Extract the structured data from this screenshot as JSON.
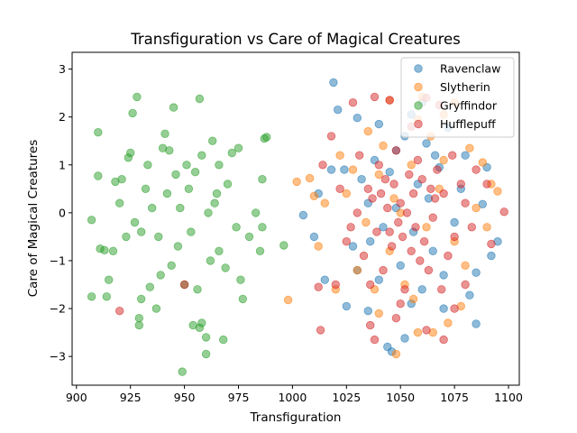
{
  "chart_data": {
    "type": "scatter",
    "title": "Transfiguration vs Care of Magical Creatures",
    "xlabel": "Transfiguration",
    "ylabel": "Care of Magical Creatures",
    "xlim": [
      898,
      1105
    ],
    "ylim": [
      -3.6,
      3.35
    ],
    "xticks": [
      900,
      925,
      950,
      975,
      1000,
      1025,
      1050,
      1075,
      1100
    ],
    "yticks": [
      -3,
      -2,
      -1,
      0,
      1,
      2,
      3
    ],
    "grid": false,
    "legend_position": "top-right",
    "series": [
      {
        "name": "Ravenclaw",
        "color": "#1f77b4",
        "points": [
          [
            1019,
            2.72
          ],
          [
            1021,
            2.15
          ],
          [
            1030,
            1.98
          ],
          [
            1040,
            1.85
          ],
          [
            1055,
            2.05
          ],
          [
            1048,
            1.3
          ],
          [
            1062,
            1.45
          ],
          [
            1072,
            1.78
          ],
          [
            1080,
            1.2
          ],
          [
            1090,
            0.95
          ],
          [
            1088,
            0.18
          ],
          [
            1095,
            -0.6
          ],
          [
            1085,
            -1.25
          ],
          [
            1082,
            -1.72
          ],
          [
            1085,
            -2.32
          ],
          [
            1070,
            -2.0
          ],
          [
            1060,
            -1.6
          ],
          [
            1052,
            -2.62
          ],
          [
            1046,
            -2.9
          ],
          [
            1044,
            -2.8
          ],
          [
            1035,
            -2.05
          ],
          [
            1025,
            -1.95
          ],
          [
            1015,
            -1.4
          ],
          [
            1010,
            -0.5
          ],
          [
            1005,
            -0.05
          ],
          [
            1012,
            0.4
          ],
          [
            1018,
            0.9
          ],
          [
            1035,
            0.2
          ],
          [
            1042,
            -0.3
          ],
          [
            1058,
            0.6
          ],
          [
            1065,
            -0.8
          ],
          [
            1075,
            -0.2
          ],
          [
            1068,
            0.95
          ],
          [
            1050,
            -1.1
          ],
          [
            1038,
            1.1
          ],
          [
            1028,
            -0.7
          ],
          [
            1032,
            0.7
          ],
          [
            1056,
            -0.4
          ],
          [
            1063,
            0.3
          ],
          [
            1045,
            0.85
          ],
          [
            1052,
            1.6
          ],
          [
            1060,
            2.3
          ],
          [
            1078,
            0.5
          ],
          [
            1092,
            -0.9
          ],
          [
            1040,
            -1.4
          ],
          [
            1030,
            -1.2
          ],
          [
            1070,
            -1.3
          ],
          [
            1055,
            -1.9
          ],
          [
            1048,
            0.1
          ],
          [
            1066,
            1.2
          ],
          [
            1024,
            0.9
          ],
          [
            1036,
            -0.6
          ]
        ]
      },
      {
        "name": "Slytherin",
        "color": "#ff7f0e",
        "points": [
          [
            998,
            -1.82
          ],
          [
            1002,
            0.65
          ],
          [
            1008,
            0.72
          ],
          [
            1015,
            0.2
          ],
          [
            1022,
            1.2
          ],
          [
            1035,
            1.7
          ],
          [
            1045,
            2.35
          ],
          [
            1060,
            2.42
          ],
          [
            1058,
            1.95
          ],
          [
            1075,
            2.3
          ],
          [
            1070,
            2.05
          ],
          [
            1082,
            1.35
          ],
          [
            1088,
            1.05
          ],
          [
            1092,
            0.6
          ],
          [
            1095,
            0.45
          ],
          [
            1090,
            -0.3
          ],
          [
            1080,
            -1.1
          ],
          [
            1078,
            -1.95
          ],
          [
            1072,
            -2.3
          ],
          [
            1065,
            -2.5
          ],
          [
            1058,
            -2.5
          ],
          [
            1048,
            -2.95
          ],
          [
            1040,
            -2.1
          ],
          [
            1030,
            -1.2
          ],
          [
            1020,
            -1.6
          ],
          [
            1012,
            -0.7
          ],
          [
            1010,
            0.35
          ],
          [
            1025,
            0.4
          ],
          [
            1050,
            0.0
          ],
          [
            1062,
            -0.3
          ],
          [
            1040,
            0.8
          ],
          [
            1055,
            1.0
          ],
          [
            1068,
            0.5
          ],
          [
            1045,
            -0.8
          ],
          [
            1034,
            -0.2
          ],
          [
            1075,
            -0.6
          ],
          [
            1052,
            -1.5
          ],
          [
            1028,
            0.9
          ],
          [
            1085,
            0.1
          ],
          [
            1042,
            1.4
          ],
          [
            1064,
            1.6
          ],
          [
            1038,
            -1.6
          ],
          [
            1070,
            1.1
          ],
          [
            1056,
            -1.8
          ],
          [
            1047,
            0.3
          ]
        ]
      },
      {
        "name": "Gryffindor",
        "color": "#2ca02c",
        "points": [
          [
            907,
            -0.15
          ],
          [
            907,
            -1.75
          ],
          [
            910,
            1.68
          ],
          [
            910,
            0.77
          ],
          [
            911,
            -0.75
          ],
          [
            913,
            -0.78
          ],
          [
            914,
            -1.75
          ],
          [
            915,
            -1.4
          ],
          [
            917,
            -0.8
          ],
          [
            918,
            0.65
          ],
          [
            921,
            0.7
          ],
          [
            924,
            1.15
          ],
          [
            925,
            1.25
          ],
          [
            926,
            2.08
          ],
          [
            928,
            2.42
          ],
          [
            929,
            -2.2
          ],
          [
            930,
            -1.8
          ],
          [
            929,
            -2.35
          ],
          [
            934,
            -1.55
          ],
          [
            937,
            -2.0
          ],
          [
            940,
            1.35
          ],
          [
            941,
            1.65
          ],
          [
            943,
            1.3
          ],
          [
            945,
            2.2
          ],
          [
            946,
            0.8
          ],
          [
            948,
            0.1
          ],
          [
            950,
            -1.5
          ],
          [
            953,
            -0.4
          ],
          [
            954,
            -2.35
          ],
          [
            957,
            2.38
          ],
          [
            957,
            -2.4
          ],
          [
            958,
            -2.3
          ],
          [
            960,
            -2.95
          ],
          [
            960,
            -2.6
          ],
          [
            962,
            -1.0
          ],
          [
            963,
            1.5
          ],
          [
            964,
            0.2
          ],
          [
            966,
            1.0
          ],
          [
            968,
            -2.65
          ],
          [
            969,
            -1.15
          ],
          [
            972,
            1.25
          ],
          [
            974,
            -0.3
          ],
          [
            975,
            1.35
          ],
          [
            977,
            -1.8
          ],
          [
            980,
            -0.5
          ],
          [
            983,
            0.0
          ],
          [
            985,
            -0.8
          ],
          [
            986,
            -0.3
          ],
          [
            986,
            0.7
          ],
          [
            987,
            1.55
          ],
          [
            988,
            1.58
          ],
          [
            996,
            -0.68
          ],
          [
            949,
            -3.32
          ],
          [
            952,
            0.5
          ],
          [
            955,
            0.85
          ],
          [
            935,
            0.1
          ],
          [
            938,
            -0.5
          ],
          [
            944,
            -1.1
          ],
          [
            932,
            0.5
          ],
          [
            927,
            -0.2
          ],
          [
            920,
            0.2
          ],
          [
            958,
            1.2
          ],
          [
            966,
            -0.8
          ],
          [
            970,
            0.6
          ],
          [
            947,
            -0.7
          ],
          [
            942,
            0.4
          ],
          [
            939,
            -1.3
          ],
          [
            951,
            1.0
          ],
          [
            961,
            0.0
          ],
          [
            933,
            1.0
          ],
          [
            923,
            -0.5
          ],
          [
            976,
            -1.4
          ],
          [
            956,
            -1.6
          ],
          [
            930,
            -0.4
          ],
          [
            965,
            0.4
          ]
        ]
      },
      {
        "name": "Hufflepuff",
        "color": "#d62728",
        "points": [
          [
            920,
            -2.05
          ],
          [
            950,
            -1.5
          ],
          [
            1012,
            -1.55
          ],
          [
            1014,
            1.0
          ],
          [
            1018,
            1.6
          ],
          [
            1028,
            2.3
          ],
          [
            1038,
            2.42
          ],
          [
            1045,
            2.35
          ],
          [
            1062,
            2.4
          ],
          [
            1068,
            2.25
          ],
          [
            1085,
            0.9
          ],
          [
            1090,
            0.6
          ],
          [
            1098,
            0.02
          ],
          [
            1092,
            -0.65
          ],
          [
            1080,
            -1.5
          ],
          [
            1075,
            -2.0
          ],
          [
            1070,
            -2.65
          ],
          [
            1062,
            -2.45
          ],
          [
            1048,
            -2.2
          ],
          [
            1036,
            -2.35
          ],
          [
            1038,
            -2.65
          ],
          [
            1013,
            -2.45
          ],
          [
            1020,
            -1.5
          ],
          [
            1025,
            -0.6
          ],
          [
            1030,
            0.0
          ],
          [
            1035,
            0.5
          ],
          [
            1040,
            1.0
          ],
          [
            1045,
            -0.4
          ],
          [
            1050,
            0.2
          ],
          [
            1055,
            -0.8
          ],
          [
            1060,
            0.7
          ],
          [
            1065,
            -0.1
          ],
          [
            1070,
            0.4
          ],
          [
            1075,
            -0.5
          ],
          [
            1080,
            0.2
          ],
          [
            1042,
            -1.2
          ],
          [
            1048,
            1.3
          ],
          [
            1052,
            -1.6
          ],
          [
            1058,
            1.1
          ],
          [
            1063,
            -1.2
          ],
          [
            1033,
            -0.9
          ],
          [
            1037,
            0.3
          ],
          [
            1047,
            0.6
          ],
          [
            1053,
            0.0
          ],
          [
            1057,
            -0.3
          ],
          [
            1067,
            0.9
          ],
          [
            1072,
            -0.9
          ],
          [
            1044,
            0.1
          ],
          [
            1051,
            -0.5
          ],
          [
            1056,
            0.4
          ],
          [
            1061,
            -0.6
          ],
          [
            1066,
            0.3
          ],
          [
            1039,
            -0.4
          ],
          [
            1043,
            0.7
          ],
          [
            1049,
            -0.2
          ],
          [
            1054,
            0.8
          ],
          [
            1059,
            -1.0
          ],
          [
            1064,
            0.5
          ],
          [
            1046,
            -0.7
          ],
          [
            1041,
            0.4
          ],
          [
            1022,
            0.5
          ],
          [
            1027,
            -0.3
          ],
          [
            1078,
            0.6
          ],
          [
            1083,
            -0.3
          ],
          [
            1074,
            1.2
          ],
          [
            1031,
            1.2
          ],
          [
            1036,
            -1.5
          ],
          [
            1069,
            -1.6
          ],
          [
            1055,
            1.8
          ],
          [
            1050,
            -1.9
          ]
        ]
      }
    ]
  }
}
